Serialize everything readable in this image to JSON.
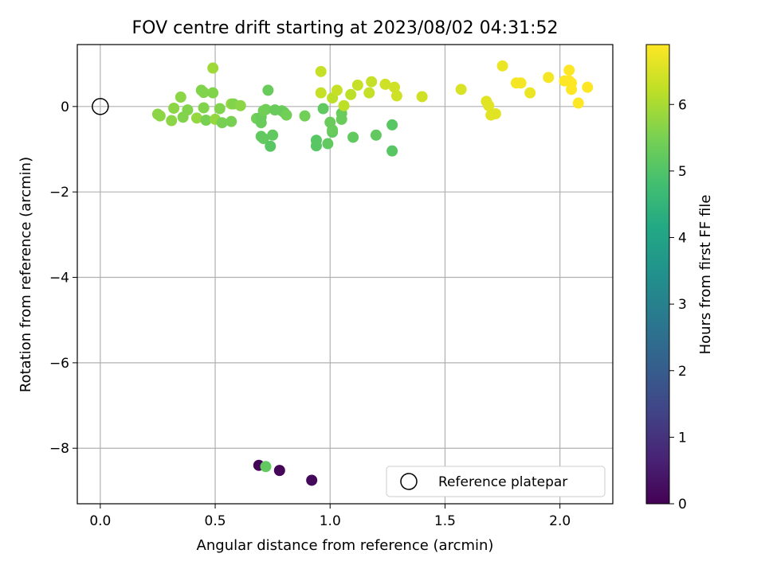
{
  "chart_data": {
    "type": "scatter",
    "title": "FOV centre drift starting at 2023/08/02 04:31:52",
    "xlabel": "Angular distance from reference (arcmin)",
    "ylabel": "Rotation from reference (arcmin)",
    "xlim": [
      -0.1,
      2.23
    ],
    "ylim": [
      -9.3,
      1.45
    ],
    "xticks": [
      0.0,
      0.5,
      1.0,
      1.5,
      2.0
    ],
    "xtick_labels": [
      "0.0",
      "0.5",
      "1.0",
      "1.5",
      "2.0"
    ],
    "yticks": [
      -8,
      -6,
      -4,
      -2,
      0
    ],
    "ytick_labels": [
      "−8",
      "−6",
      "−4",
      "−2",
      "0"
    ],
    "grid": true,
    "legend": {
      "placement": "bottom-right",
      "entries": [
        "Reference platepar"
      ]
    },
    "colorbar": {
      "label": "Hours from first FF file",
      "range": [
        0,
        6.9
      ],
      "ticks": [
        0,
        1,
        2,
        3,
        4,
        5,
        6
      ],
      "tick_labels": [
        "0",
        "1",
        "2",
        "3",
        "4",
        "5",
        "6"
      ],
      "colormap": "viridis"
    },
    "reference_point": {
      "x": 0,
      "y": 0
    },
    "points": [
      {
        "x": 0.69,
        "y": -8.4,
        "h": 0.05
      },
      {
        "x": 0.78,
        "y": -8.52,
        "h": 0.1
      },
      {
        "x": 0.92,
        "y": -8.75,
        "h": 0.15
      },
      {
        "x": 0.72,
        "y": -8.43,
        "h": 5.2
      },
      {
        "x": 0.25,
        "y": -0.18,
        "h": 5.7
      },
      {
        "x": 0.26,
        "y": -0.22,
        "h": 5.7
      },
      {
        "x": 0.31,
        "y": -0.33,
        "h": 5.7
      },
      {
        "x": 0.32,
        "y": -0.04,
        "h": 5.7
      },
      {
        "x": 0.35,
        "y": 0.22,
        "h": 5.7
      },
      {
        "x": 0.36,
        "y": -0.25,
        "h": 5.6
      },
      {
        "x": 0.38,
        "y": -0.08,
        "h": 5.6
      },
      {
        "x": 0.42,
        "y": -0.27,
        "h": 5.8
      },
      {
        "x": 0.44,
        "y": 0.38,
        "h": 5.6
      },
      {
        "x": 0.45,
        "y": 0.33,
        "h": 5.6
      },
      {
        "x": 0.45,
        "y": -0.03,
        "h": 5.6
      },
      {
        "x": 0.46,
        "y": -0.32,
        "h": 5.5
      },
      {
        "x": 0.49,
        "y": 0.32,
        "h": 5.6
      },
      {
        "x": 0.49,
        "y": 0.9,
        "h": 5.9
      },
      {
        "x": 0.5,
        "y": -0.3,
        "h": 5.8
      },
      {
        "x": 0.52,
        "y": -0.05,
        "h": 5.6
      },
      {
        "x": 0.53,
        "y": -0.38,
        "h": 5.5
      },
      {
        "x": 0.57,
        "y": 0.06,
        "h": 5.8
      },
      {
        "x": 0.57,
        "y": -0.35,
        "h": 5.5
      },
      {
        "x": 0.58,
        "y": 0.06,
        "h": 5.6
      },
      {
        "x": 0.61,
        "y": 0.02,
        "h": 5.7
      },
      {
        "x": 0.68,
        "y": -0.28,
        "h": 5.4
      },
      {
        "x": 0.7,
        "y": -0.38,
        "h": 5.3
      },
      {
        "x": 0.7,
        "y": -0.25,
        "h": 5.3
      },
      {
        "x": 0.7,
        "y": -0.7,
        "h": 5.2
      },
      {
        "x": 0.71,
        "y": -0.1,
        "h": 5.4
      },
      {
        "x": 0.71,
        "y": -0.75,
        "h": 5.2
      },
      {
        "x": 0.72,
        "y": -0.07,
        "h": 5.4
      },
      {
        "x": 0.73,
        "y": 0.38,
        "h": 5.3
      },
      {
        "x": 0.74,
        "y": -0.93,
        "h": 5.1
      },
      {
        "x": 0.75,
        "y": -0.67,
        "h": 5.2
      },
      {
        "x": 0.76,
        "y": -0.08,
        "h": 5.3
      },
      {
        "x": 0.79,
        "y": -0.1,
        "h": 5.3
      },
      {
        "x": 0.8,
        "y": -0.14,
        "h": 5.3
      },
      {
        "x": 0.81,
        "y": -0.2,
        "h": 5.4
      },
      {
        "x": 0.89,
        "y": -0.22,
        "h": 5.4
      },
      {
        "x": 0.94,
        "y": -0.79,
        "h": 5.1
      },
      {
        "x": 0.94,
        "y": -0.92,
        "h": 5.1
      },
      {
        "x": 0.97,
        "y": -0.05,
        "h": 5.2
      },
      {
        "x": 0.99,
        "y": -0.87,
        "h": 5.2
      },
      {
        "x": 1.0,
        "y": -0.37,
        "h": 5.3
      },
      {
        "x": 1.01,
        "y": -0.6,
        "h": 5.2
      },
      {
        "x": 1.01,
        "y": -0.55,
        "h": 5.3
      },
      {
        "x": 1.05,
        "y": -0.16,
        "h": 5.3
      },
      {
        "x": 1.05,
        "y": -0.3,
        "h": 5.3
      },
      {
        "x": 1.1,
        "y": -0.72,
        "h": 5.2
      },
      {
        "x": 1.2,
        "y": -0.67,
        "h": 5.2
      },
      {
        "x": 1.27,
        "y": -0.43,
        "h": 5.1
      },
      {
        "x": 1.27,
        "y": -1.04,
        "h": 5.1
      },
      {
        "x": 0.96,
        "y": 0.82,
        "h": 6.3
      },
      {
        "x": 0.96,
        "y": 0.32,
        "h": 6.3
      },
      {
        "x": 1.01,
        "y": 0.2,
        "h": 6.2
      },
      {
        "x": 1.03,
        "y": 0.38,
        "h": 6.3
      },
      {
        "x": 1.06,
        "y": 0.02,
        "h": 6.2
      },
      {
        "x": 1.09,
        "y": 0.28,
        "h": 6.2
      },
      {
        "x": 1.12,
        "y": 0.5,
        "h": 6.3
      },
      {
        "x": 1.17,
        "y": 0.32,
        "h": 6.3
      },
      {
        "x": 1.18,
        "y": 0.58,
        "h": 6.3
      },
      {
        "x": 1.24,
        "y": 0.52,
        "h": 6.4
      },
      {
        "x": 1.28,
        "y": 0.45,
        "h": 6.4
      },
      {
        "x": 1.29,
        "y": 0.25,
        "h": 6.4
      },
      {
        "x": 1.4,
        "y": 0.23,
        "h": 6.4
      },
      {
        "x": 1.57,
        "y": 0.4,
        "h": 6.5
      },
      {
        "x": 1.68,
        "y": 0.12,
        "h": 6.6
      },
      {
        "x": 1.69,
        "y": 0.02,
        "h": 6.6
      },
      {
        "x": 1.7,
        "y": -0.2,
        "h": 6.6
      },
      {
        "x": 1.72,
        "y": -0.17,
        "h": 6.6
      },
      {
        "x": 1.75,
        "y": 0.95,
        "h": 6.7
      },
      {
        "x": 1.81,
        "y": 0.55,
        "h": 6.8
      },
      {
        "x": 1.83,
        "y": 0.55,
        "h": 6.8
      },
      {
        "x": 1.87,
        "y": 0.32,
        "h": 6.7
      },
      {
        "x": 1.95,
        "y": 0.68,
        "h": 6.8
      },
      {
        "x": 2.02,
        "y": 0.6,
        "h": 6.9
      },
      {
        "x": 2.04,
        "y": 0.85,
        "h": 6.9
      },
      {
        "x": 2.04,
        "y": 0.6,
        "h": 6.9
      },
      {
        "x": 2.05,
        "y": 0.55,
        "h": 6.9
      },
      {
        "x": 2.05,
        "y": 0.4,
        "h": 6.9
      },
      {
        "x": 2.08,
        "y": 0.08,
        "h": 6.9
      },
      {
        "x": 2.12,
        "y": 0.45,
        "h": 6.9
      }
    ]
  }
}
